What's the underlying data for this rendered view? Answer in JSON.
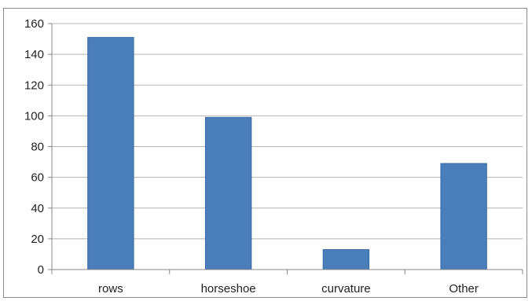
{
  "chart_data": {
    "type": "bar",
    "categories": [
      "rows",
      "horseshoe",
      "curvature",
      "Other"
    ],
    "values": [
      151,
      99,
      13,
      69
    ],
    "ylim": [
      0,
      160
    ],
    "yticks": [
      0,
      20,
      40,
      60,
      80,
      100,
      120,
      140,
      160
    ],
    "grid": true,
    "legend": "none",
    "bar_color": "#4a7ebb",
    "bar_edge_color": "#3a6aa6",
    "grid_color": "#b4b4b4"
  }
}
